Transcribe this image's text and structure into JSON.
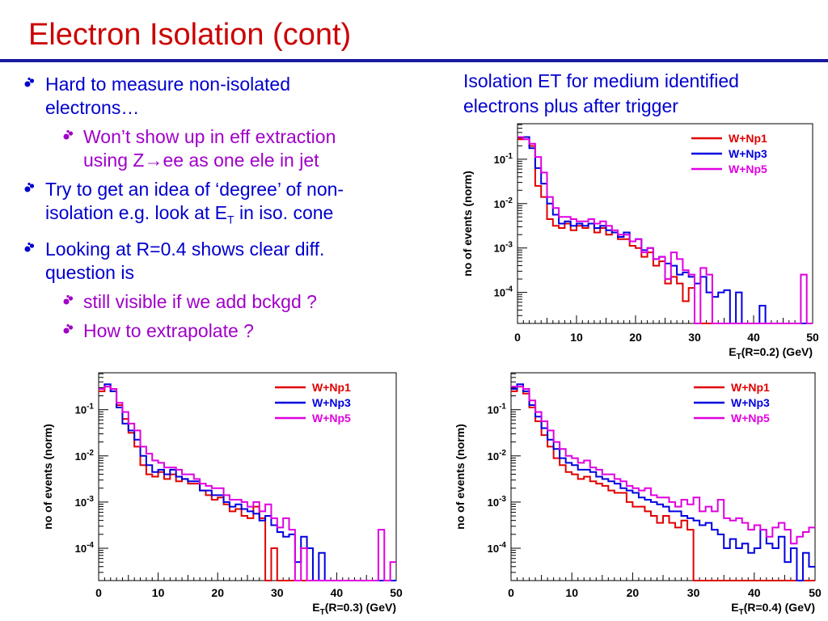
{
  "slide": {
    "title": "Electron Isolation (cont)",
    "caption_line1": "Isolation ET for medium identified",
    "caption_line2": "electrons plus after trigger",
    "bullets": {
      "b1_l1": "Hard to measure non-isolated",
      "b1_l2": "electrons…",
      "b1a_l1": "Won’t show up in eff extraction",
      "b1a_l2a": "using Z",
      "b1a_arrow": "→",
      "b1a_l2b": "ee as one ele in jet",
      "b2_l1": "Try to get an idea of ‘degree’ of non-",
      "b2_l2a": "isolation e.g. look at E",
      "b2_sub": "T",
      "b2_l2b": " in iso. cone",
      "b3_l1": "Looking at R=0.4 shows clear diff.",
      "b3_l2": "question is",
      "b3a": "still visible if we add bckgd ?",
      "b3b": "How to extrapolate ?"
    }
  },
  "colors": {
    "title": "#cc0000",
    "rule": "#1a1aa0",
    "bullet_l1": "#0000cc",
    "bullet_l2": "#a000c8"
  },
  "chart_data": [
    {
      "type": "line",
      "id": "R02",
      "ylabel": "no of events (norm)",
      "xlabel": "E_T(R=0.2) (GeV)",
      "xlim": [
        0,
        50
      ],
      "ylim_log10": [
        -4.7,
        -0.2
      ],
      "log_y": true,
      "x_ticks": [
        "0",
        "10",
        "20",
        "30",
        "40",
        "50"
      ],
      "y_ticks": [
        "10-1",
        "10-2",
        "10-3",
        "10-4"
      ],
      "legend_position": "top-right",
      "series": [
        {
          "name": "W+Np1",
          "color": "#e00000",
          "values": [
            -0.55,
            -0.5,
            -0.7,
            -1.6,
            -1.85,
            -2.35,
            -2.5,
            -2.55,
            -2.45,
            -2.6,
            -2.5,
            -2.55,
            -2.45,
            -2.65,
            -2.55,
            -2.7,
            -2.65,
            -2.8,
            -2.8,
            -2.95,
            -3.0,
            -3.2,
            -3.1,
            -3.4,
            -3.3,
            -3.8,
            -3.65,
            -3.8,
            -4.2,
            -3.9,
            -4.7,
            -4.7,
            -4.7,
            -4.7,
            -4.7,
            -4.7,
            -4.7,
            -4.7,
            -4.7,
            -4.7,
            -4.7,
            -4.7,
            -4.7,
            -4.7,
            -4.7,
            -4.7,
            -4.7,
            -4.7,
            -4.7,
            -4.7
          ]
        },
        {
          "name": "W+Np3",
          "color": "#0000e0",
          "values": [
            -0.5,
            -0.5,
            -0.75,
            -1.2,
            -1.55,
            -2.0,
            -2.25,
            -2.45,
            -2.4,
            -2.5,
            -2.45,
            -2.5,
            -2.45,
            -2.55,
            -2.5,
            -2.6,
            -2.65,
            -2.75,
            -2.65,
            -2.85,
            -2.8,
            -3.05,
            -3.0,
            -3.25,
            -3.2,
            -3.35,
            -3.4,
            -3.6,
            -3.55,
            -3.65,
            -3.8,
            -3.65,
            -4.0,
            -4.1,
            -4.0,
            -3.95,
            -4.7,
            -4.0,
            -4.7,
            -4.7,
            -4.7,
            -4.3,
            -4.7,
            -4.7,
            -4.7,
            -4.7,
            -4.7,
            -4.7,
            -4.7,
            -4.7
          ]
        },
        {
          "name": "W+Np5",
          "color": "#e000e0",
          "values": [
            -0.5,
            -0.55,
            -0.65,
            -0.95,
            -1.3,
            -1.85,
            -2.1,
            -2.3,
            -2.3,
            -2.35,
            -2.4,
            -2.4,
            -2.35,
            -2.45,
            -2.4,
            -2.5,
            -2.6,
            -2.7,
            -2.7,
            -2.85,
            -2.8,
            -3.1,
            -3.0,
            -3.25,
            -3.2,
            -3.7,
            -3.1,
            -3.25,
            -3.5,
            -3.6,
            -4.7,
            -3.45,
            -3.6,
            -4.7,
            -4.7,
            -4.7,
            -4.7,
            -4.7,
            -4.7,
            -4.7,
            -4.7,
            -4.7,
            -4.7,
            -4.7,
            -4.7,
            -4.7,
            -4.7,
            -4.7,
            -3.6,
            -4.7
          ]
        }
      ]
    },
    {
      "type": "line",
      "id": "R03",
      "ylabel": "no of events (norm)",
      "xlabel": "E_T(R=0.3) (GeV)",
      "xlim": [
        0,
        50
      ],
      "ylim_log10": [
        -4.7,
        -0.2
      ],
      "log_y": true,
      "x_ticks": [
        "0",
        "10",
        "20",
        "30",
        "40",
        "50"
      ],
      "y_ticks": [
        "10-1",
        "10-2",
        "10-3",
        "10-4"
      ],
      "legend_position": "top-right",
      "series": [
        {
          "name": "W+Np1",
          "color": "#e00000",
          "values": [
            -0.6,
            -0.5,
            -0.6,
            -0.9,
            -1.2,
            -1.5,
            -1.8,
            -2.2,
            -2.4,
            -2.45,
            -2.35,
            -2.5,
            -2.4,
            -2.55,
            -2.5,
            -2.6,
            -2.6,
            -2.75,
            -2.85,
            -2.95,
            -2.9,
            -3.05,
            -3.2,
            -3.15,
            -3.3,
            -3.35,
            -3.1,
            -3.35,
            -4.7,
            -4.0,
            -4.7,
            -4.7,
            -4.7,
            -4.7,
            -4.7,
            -4.7,
            -4.7,
            -4.7,
            -4.7,
            -4.7,
            -4.7,
            -4.7,
            -4.7,
            -4.7,
            -4.7,
            -4.7,
            -4.7,
            -4.7,
            -4.7,
            -4.7
          ]
        },
        {
          "name": "W+Np3",
          "color": "#0000e0",
          "values": [
            -0.55,
            -0.45,
            -0.6,
            -0.95,
            -1.3,
            -1.45,
            -1.65,
            -2.0,
            -2.2,
            -2.35,
            -2.3,
            -2.4,
            -2.3,
            -2.45,
            -2.5,
            -2.55,
            -2.55,
            -2.75,
            -2.75,
            -2.85,
            -2.85,
            -3.0,
            -3.1,
            -3.05,
            -3.15,
            -3.2,
            -3.25,
            -3.4,
            -3.3,
            -3.5,
            -3.65,
            -3.75,
            -3.7,
            -4.3,
            -3.75,
            -4.0,
            -4.7,
            -4.1,
            -4.7,
            -4.7,
            -4.7,
            -4.7,
            -4.7,
            -4.7,
            -4.7,
            -4.7,
            -4.7,
            -4.7,
            -4.7,
            -4.7
          ]
        },
        {
          "name": "W+Np5",
          "color": "#e000e0",
          "values": [
            -0.55,
            -0.5,
            -0.55,
            -0.85,
            -1.05,
            -1.3,
            -1.45,
            -1.8,
            -1.95,
            -2.1,
            -2.15,
            -2.25,
            -2.25,
            -2.3,
            -2.4,
            -2.4,
            -2.5,
            -2.6,
            -2.65,
            -2.7,
            -2.7,
            -2.85,
            -2.95,
            -2.95,
            -3.0,
            -3.1,
            -3.0,
            -3.2,
            -3.05,
            -3.35,
            -3.55,
            -3.35,
            -3.6,
            -4.7,
            -4.0,
            -4.7,
            -4.7,
            -4.7,
            -4.7,
            -4.7,
            -4.7,
            -4.7,
            -4.7,
            -4.7,
            -4.7,
            -4.7,
            -4.7,
            -3.6,
            -4.7,
            -4.3
          ]
        }
      ]
    },
    {
      "type": "line",
      "id": "R04",
      "ylabel": "no of events (norm)",
      "xlabel": "E_T(R=0.4) (GeV)",
      "xlim": [
        0,
        50
      ],
      "ylim_log10": [
        -4.7,
        -0.2
      ],
      "log_y": true,
      "x_ticks": [
        "0",
        "10",
        "20",
        "30",
        "40",
        "50"
      ],
      "y_ticks": [
        "10-1",
        "10-2",
        "10-3",
        "10-4"
      ],
      "legend_position": "top-right",
      "series": [
        {
          "name": "W+Np1",
          "color": "#e00000",
          "values": [
            -0.6,
            -0.5,
            -0.65,
            -0.95,
            -1.25,
            -1.55,
            -1.8,
            -2.05,
            -2.2,
            -2.35,
            -2.4,
            -2.5,
            -2.45,
            -2.55,
            -2.6,
            -2.65,
            -2.75,
            -2.8,
            -2.8,
            -3.0,
            -3.1,
            -3.1,
            -3.2,
            -3.3,
            -3.45,
            -3.3,
            -3.45,
            -3.55,
            -3.4,
            -3.6,
            -4.7,
            -4.7,
            -4.7,
            -4.7,
            -4.7,
            -4.7,
            -4.7,
            -4.7,
            -4.7,
            -4.7,
            -4.7,
            -4.7,
            -4.7,
            -4.7,
            -4.7,
            -4.7,
            -4.7,
            -4.7,
            -4.7,
            -4.7
          ]
        },
        {
          "name": "W+Np3",
          "color": "#0000e0",
          "values": [
            -0.55,
            -0.45,
            -0.6,
            -0.9,
            -1.15,
            -1.4,
            -1.65,
            -1.85,
            -2.05,
            -2.15,
            -2.2,
            -2.3,
            -2.3,
            -2.35,
            -2.45,
            -2.5,
            -2.55,
            -2.6,
            -2.7,
            -2.75,
            -2.8,
            -2.9,
            -2.95,
            -3.0,
            -3.05,
            -3.1,
            -3.2,
            -3.2,
            -3.3,
            -3.35,
            -3.4,
            -3.5,
            -3.45,
            -3.6,
            -3.7,
            -4.0,
            -3.8,
            -4.0,
            -3.9,
            -4.1,
            -4.0,
            -3.6,
            -3.9,
            -4.0,
            -3.75,
            -4.3,
            -4.0,
            -4.7,
            -4.1,
            -4.4
          ]
        },
        {
          "name": "W+Np5",
          "color": "#e000e0",
          "values": [
            -0.5,
            -0.5,
            -0.55,
            -0.8,
            -1.05,
            -1.25,
            -1.45,
            -1.7,
            -1.85,
            -2.0,
            -2.05,
            -2.15,
            -2.1,
            -2.25,
            -2.3,
            -2.4,
            -2.4,
            -2.5,
            -2.55,
            -2.65,
            -2.7,
            -2.75,
            -2.7,
            -2.85,
            -2.9,
            -2.9,
            -3.0,
            -3.1,
            -2.95,
            -3.05,
            -2.9,
            -3.2,
            -3.1,
            -3.2,
            -2.95,
            -3.35,
            -3.4,
            -3.35,
            -3.45,
            -3.6,
            -3.5,
            -3.6,
            -3.75,
            -3.55,
            -3.45,
            -3.6,
            -3.9,
            -3.75,
            -3.65,
            -3.55
          ]
        }
      ]
    }
  ]
}
